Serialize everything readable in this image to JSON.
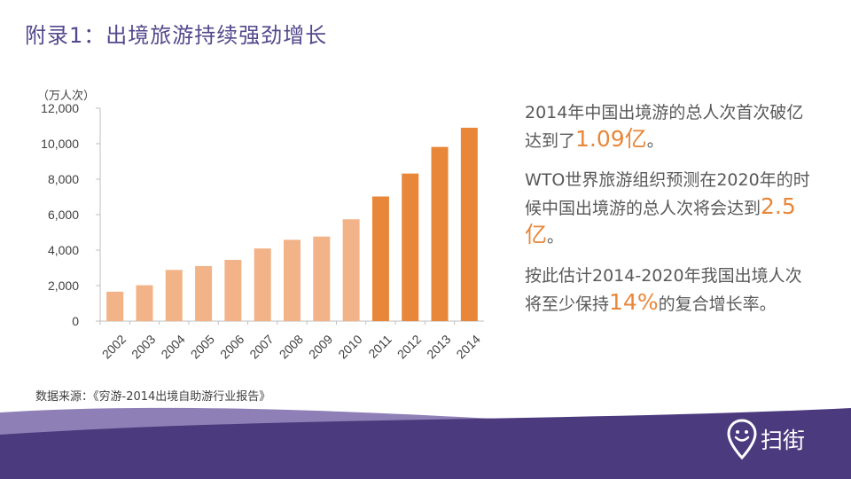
{
  "title": "附录1：出境旅游持续强劲增长",
  "unit_label": "（万人次）",
  "chart_data": {
    "type": "bar",
    "categories": [
      "2002",
      "2003",
      "2004",
      "2005",
      "2006",
      "2007",
      "2008",
      "2009",
      "2010",
      "2011",
      "2012",
      "2013",
      "2014"
    ],
    "values": [
      1660,
      2022,
      2885,
      3103,
      3452,
      4095,
      4584,
      4766,
      5739,
      7025,
      8318,
      9819,
      10900
    ],
    "ylim": [
      0,
      12000
    ],
    "yticks": [
      "0",
      "2,000",
      "4,000",
      "6,000",
      "8,000",
      "10,000",
      "12,000"
    ],
    "ytick_values": [
      0,
      2000,
      4000,
      6000,
      8000,
      10000,
      12000
    ],
    "colors": {
      "light": "#f2b388",
      "dark": "#e8873a",
      "axis": "#bfbfbf"
    },
    "grid": false,
    "legend": "none"
  },
  "right_text": {
    "p1_pre": "2014年中国出境游的总人次首次破亿达到了",
    "p1_hl": "1.09亿",
    "p1_post": "。",
    "p2_pre": "WTO世界旅游组织预测在2020年的时候中国出境游的总人次将会达到",
    "p2_hl": "2.5亿",
    "p2_post": "。",
    "p3_pre": "按此估计2014-2020年我国出境人次将至少保持",
    "p3_hl": "14%",
    "p3_post": "的复合增长率。"
  },
  "source": "数据来源：《穷游-2014出境自助游行业报告》",
  "logo": {
    "text": "扫街",
    "icon": "map-pin-smile-icon"
  },
  "footer_colors": {
    "wave_dark": "#4b3a7d",
    "wave_light": "#7a6aa6"
  }
}
